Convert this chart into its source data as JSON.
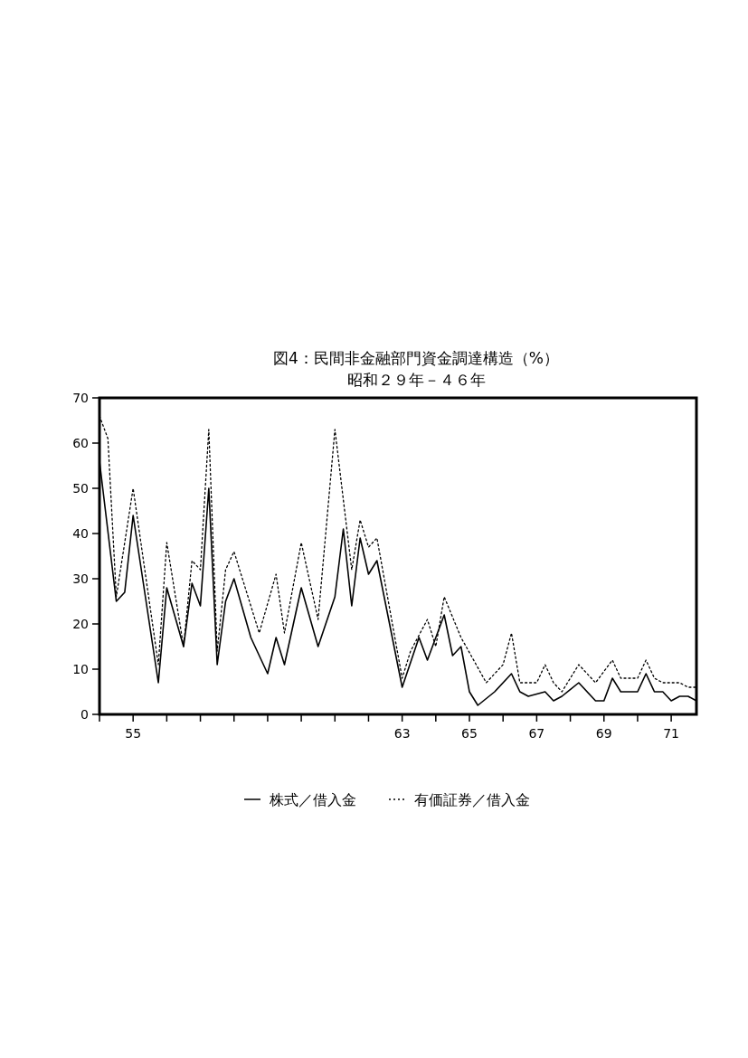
{
  "chart_data": {
    "type": "line",
    "title": "図4：民間非金融部門資金調達構造（%）",
    "subtitle": "昭和２９年－４６年",
    "xlim": [
      1954,
      1971.75
    ],
    "ylim": [
      0,
      70
    ],
    "xticks": [
      {
        "value": 1954,
        "label": null
      },
      {
        "value": 1955,
        "label": "55"
      },
      {
        "value": 1956,
        "label": null
      },
      {
        "value": 1957,
        "label": null
      },
      {
        "value": 1958,
        "label": null
      },
      {
        "value": 1959,
        "label": null
      },
      {
        "value": 1960,
        "label": null
      },
      {
        "value": 1961,
        "label": null
      },
      {
        "value": 1962,
        "label": null
      },
      {
        "value": 1963,
        "label": "63"
      },
      {
        "value": 1964,
        "label": null
      },
      {
        "value": 1965,
        "label": "65"
      },
      {
        "value": 1966,
        "label": null
      },
      {
        "value": 1967,
        "label": "67"
      },
      {
        "value": 1968,
        "label": null
      },
      {
        "value": 1969,
        "label": "69"
      },
      {
        "value": 1970,
        "label": null
      },
      {
        "value": 1971,
        "label": "71"
      }
    ],
    "yticks": [
      0,
      10,
      20,
      30,
      40,
      50,
      60,
      70
    ],
    "legend": "bottom",
    "series": [
      {
        "name": "株式／借入金",
        "color": "#000000",
        "line_style": "solid",
        "x": [
          1954,
          1954.5,
          1954.75,
          1955,
          1955.75,
          1956,
          1956.5,
          1956.75,
          1957,
          1957.25,
          1957.5,
          1957.75,
          1958,
          1958.5,
          1959,
          1959.25,
          1959.5,
          1960,
          1960.5,
          1961,
          1961.25,
          1961.5,
          1961.75,
          1962,
          1962.25,
          1963,
          1963.5,
          1963.75,
          1964.25,
          1964.5,
          1964.75,
          1965,
          1965.25,
          1965.75,
          1966.25,
          1966.5,
          1966.75,
          1967.25,
          1967.5,
          1967.75,
          1968.25,
          1968.75,
          1969,
          1969.25,
          1969.5,
          1970,
          1970.25,
          1970.5,
          1970.75,
          1971,
          1971.25,
          1971.5,
          1971.75
        ],
        "values": [
          56,
          25,
          27,
          44,
          7,
          28,
          15,
          29,
          24,
          50,
          11,
          25,
          30,
          17,
          9,
          17,
          11,
          28,
          15,
          26,
          41,
          24,
          39,
          31,
          34,
          6,
          17,
          12,
          22,
          13,
          15,
          5,
          2,
          5,
          9,
          5,
          4,
          5,
          3,
          4,
          7,
          3,
          3,
          8,
          5,
          5,
          9,
          5,
          5,
          3,
          4,
          4,
          3
        ]
      },
      {
        "name": "有価証券／借入金",
        "color": "#000000",
        "line_style": "dotted",
        "x": [
          1954,
          1954.25,
          1954.5,
          1955,
          1955.75,
          1956,
          1956.5,
          1956.75,
          1957,
          1957.25,
          1957.5,
          1957.75,
          1958,
          1958.75,
          1959.25,
          1959.5,
          1960,
          1960.5,
          1961,
          1961.5,
          1961.75,
          1962,
          1962.25,
          1963,
          1963.25,
          1963.75,
          1964,
          1964.25,
          1964.75,
          1965.5,
          1966,
          1966.25,
          1966.5,
          1967,
          1967.25,
          1967.5,
          1967.75,
          1968.25,
          1968.75,
          1969.25,
          1969.5,
          1970,
          1970.25,
          1970.5,
          1970.75,
          1971.25,
          1971.5,
          1971.75
        ],
        "values": [
          66,
          61,
          26,
          50,
          11,
          38,
          15,
          34,
          32,
          63,
          14,
          32,
          36,
          18,
          31,
          18,
          38,
          21,
          63,
          32,
          43,
          37,
          39,
          8,
          14,
          21,
          15,
          26,
          17,
          7,
          11,
          18,
          7,
          7,
          11,
          7,
          5,
          11,
          7,
          12,
          8,
          8,
          12,
          8,
          7,
          7,
          6,
          6
        ]
      }
    ]
  }
}
